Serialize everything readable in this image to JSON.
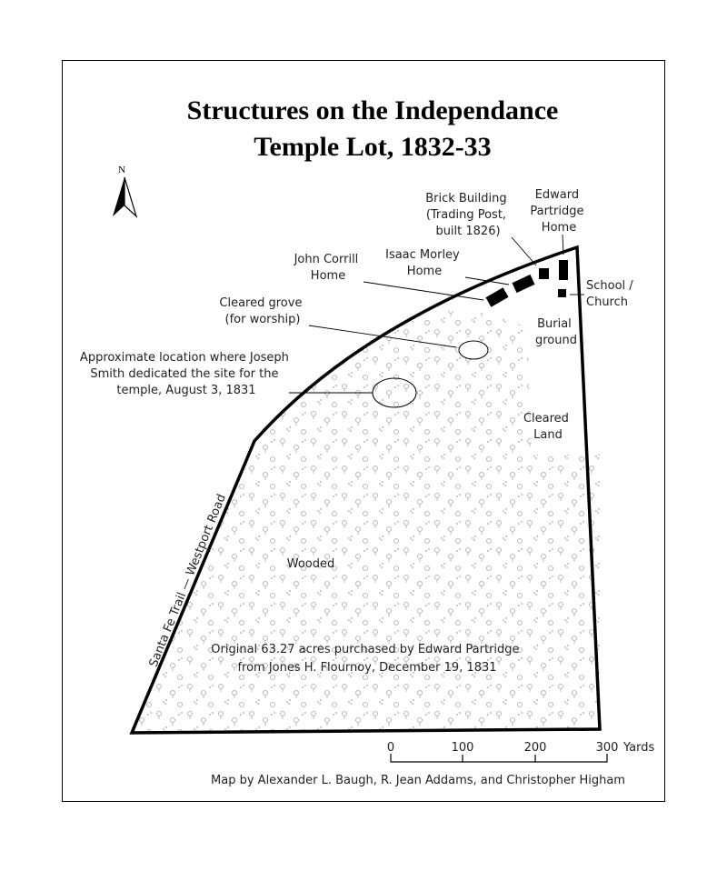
{
  "title": {
    "line1": "Structures on the Independance",
    "line2": "Temple Lot, 1832-33"
  },
  "north_arrow": {
    "label": "N",
    "icon": "north-arrow-icon"
  },
  "labels": {
    "brick_building": [
      "Brick Building",
      "(Trading Post,",
      "built 1826)"
    ],
    "edward_partridge": [
      "Edward",
      "Partridge",
      "Home"
    ],
    "john_corrill": [
      "John Corrill",
      "Home"
    ],
    "isaac_morley": [
      "Isaac Morley",
      "Home"
    ],
    "school_church": [
      "School /",
      "Church"
    ],
    "cleared_grove": [
      "Cleared grove",
      "(for worship)"
    ],
    "burial_ground": [
      "Burial",
      "ground"
    ],
    "dedication": [
      "Approximate location where Joseph",
      "Smith dedicated the site for the",
      "temple, August 3, 1831"
    ],
    "cleared_land": [
      "Cleared",
      "Land"
    ],
    "wooded": "Wooded",
    "road": "Santa Fe Trail — Westport Road",
    "purchase": [
      "Original 63.27 acres purchased by Edward Partridge",
      "from Jones H. Flournoy, December 19, 1831"
    ]
  },
  "scale_bar": {
    "ticks": [
      "0",
      "100",
      "200",
      "300"
    ],
    "unit": "Yards"
  },
  "credit": "Map by Alexander L. Baugh, R. Jean Addams, and Christopher Higham"
}
